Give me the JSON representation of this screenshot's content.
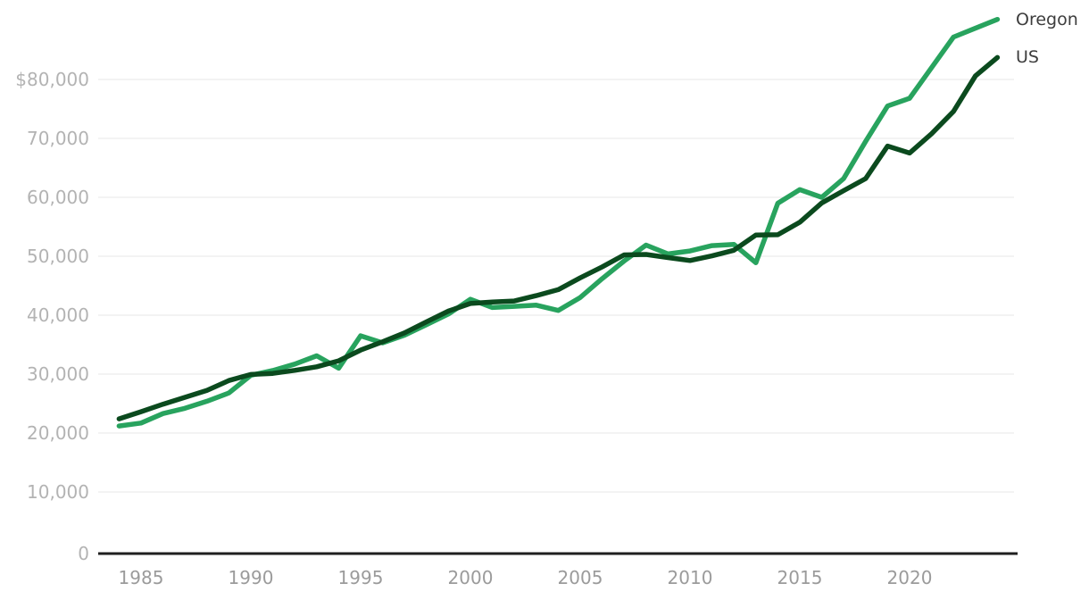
{
  "chart_data": {
    "type": "line",
    "x": [
      1984,
      1985,
      1986,
      1987,
      1988,
      1989,
      1990,
      1991,
      1992,
      1993,
      1994,
      1995,
      1996,
      1997,
      1998,
      1999,
      2000,
      2001,
      2002,
      2003,
      2004,
      2005,
      2006,
      2007,
      2008,
      2009,
      2010,
      2011,
      2012,
      2013,
      2014,
      2015,
      2016,
      2017,
      2018,
      2019,
      2020,
      2021,
      2022,
      2023,
      2024
    ],
    "series": [
      {
        "name": "Oregon",
        "color": "#28a35e",
        "values": [
          21200,
          21700,
          23300,
          24200,
          25400,
          26800,
          29800,
          30600,
          31700,
          33100,
          31000,
          36500,
          35300,
          36600,
          38400,
          40200,
          42700,
          41300,
          41500,
          41700,
          40800,
          43000,
          46200,
          49200,
          51900,
          50400,
          50900,
          51800,
          52000,
          48900,
          59000,
          61300,
          60000,
          63200,
          69500,
          75500,
          76800,
          82000,
          87200,
          88700,
          90200
        ]
      },
      {
        "name": "US",
        "color": "#0b4a1e",
        "values": [
          22415,
          23618,
          24897,
          26061,
          27225,
          28906,
          29943,
          30126,
          30636,
          31241,
          32264,
          34076,
          35492,
          37005,
          38885,
          40696,
          41990,
          42228,
          42409,
          43318,
          44334,
          46326,
          48201,
          50233,
          50303,
          49777,
          49276,
          50054,
          51017,
          53585,
          53657,
          55775,
          59039,
          61136,
          63179,
          68703,
          67521,
          70784,
          74580,
          80610,
          83730
        ]
      }
    ],
    "xlabel": "",
    "ylabel": "",
    "xlim": [
      1984,
      2024
    ],
    "ylim": [
      0,
      90000
    ],
    "x_ticks": {
      "values": [
        1985,
        1990,
        1995,
        2000,
        2005,
        2010,
        2015,
        2020
      ],
      "labels": [
        "1985",
        "1990",
        "1995",
        "2000",
        "2005",
        "2010",
        "2015",
        "2020"
      ]
    },
    "y_ticks": {
      "values": [
        0,
        10000,
        20000,
        30000,
        40000,
        50000,
        60000,
        70000,
        80000
      ],
      "labels": [
        "0",
        "10,000",
        "20,000",
        "30,000",
        "40,000",
        "50,000",
        "60,000",
        "70,000",
        "$80,000"
      ]
    },
    "grid": true,
    "legend_position": "right-of-line-ends",
    "styles": {
      "background": "#ffffff",
      "grid_color": "#e7e7e7",
      "axis_line_color": "#1f1f1f",
      "y_label_color": "#b3b3b3",
      "x_label_color": "#9b9b9b",
      "legend_text_color": "#3d3d3d"
    }
  }
}
